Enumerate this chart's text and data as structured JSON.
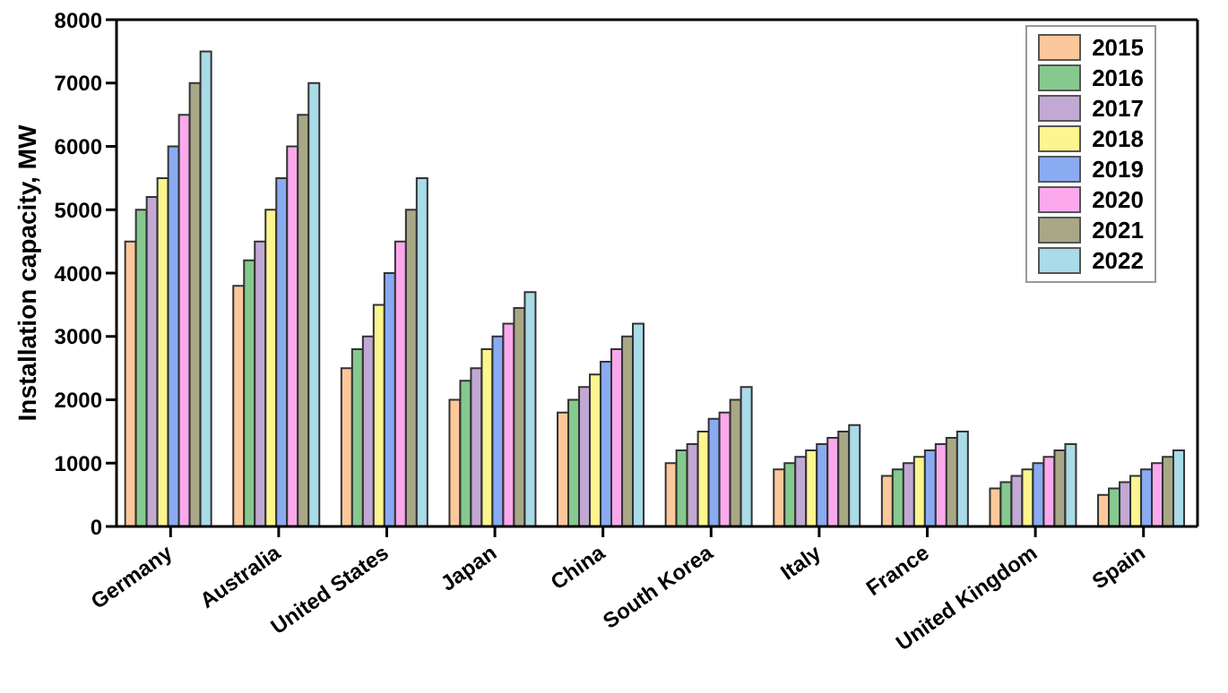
{
  "chart_data": {
    "type": "bar",
    "ylabel": "Installation capacity, MW",
    "categories": [
      "Germany",
      "Australia",
      "United States",
      "Japan",
      "China",
      "South Korea",
      "Italy",
      "France",
      "United Kingdom",
      "Spain"
    ],
    "series": [
      {
        "name": "2015",
        "color": "#fcc89b",
        "values": [
          4500,
          3800,
          2500,
          2000,
          1800,
          1000,
          900,
          800,
          600,
          500
        ]
      },
      {
        "name": "2016",
        "color": "#86c98e",
        "values": [
          5000,
          4200,
          2800,
          2300,
          2000,
          1200,
          1000,
          900,
          700,
          600
        ]
      },
      {
        "name": "2017",
        "color": "#c2a9d4",
        "values": [
          5200,
          4500,
          3000,
          2500,
          2200,
          1300,
          1100,
          1000,
          800,
          700
        ]
      },
      {
        "name": "2018",
        "color": "#fdf58e",
        "values": [
          5500,
          5000,
          3500,
          2800,
          2400,
          1500,
          1200,
          1100,
          900,
          800
        ]
      },
      {
        "name": "2019",
        "color": "#8aabf2",
        "values": [
          6000,
          5500,
          4000,
          3000,
          2600,
          1700,
          1300,
          1200,
          1000,
          900
        ]
      },
      {
        "name": "2020",
        "color": "#fba9ec",
        "values": [
          6500,
          6000,
          4500,
          3200,
          2800,
          1800,
          1400,
          1300,
          1100,
          1000
        ]
      },
      {
        "name": "2021",
        "color": "#a8a886",
        "values": [
          7000,
          6500,
          5000,
          3450,
          3000,
          2000,
          1500,
          1400,
          1200,
          1100
        ]
      },
      {
        "name": "2022",
        "color": "#a9dbe8",
        "values": [
          7500,
          7000,
          5500,
          3700,
          3200,
          2200,
          1600,
          1500,
          1300,
          1200
        ]
      }
    ],
    "ylim": [
      0,
      8000
    ],
    "yticks": [
      0,
      1000,
      2000,
      3000,
      4000,
      5000,
      6000,
      7000,
      8000
    ],
    "grid": false,
    "legend": "top right"
  }
}
